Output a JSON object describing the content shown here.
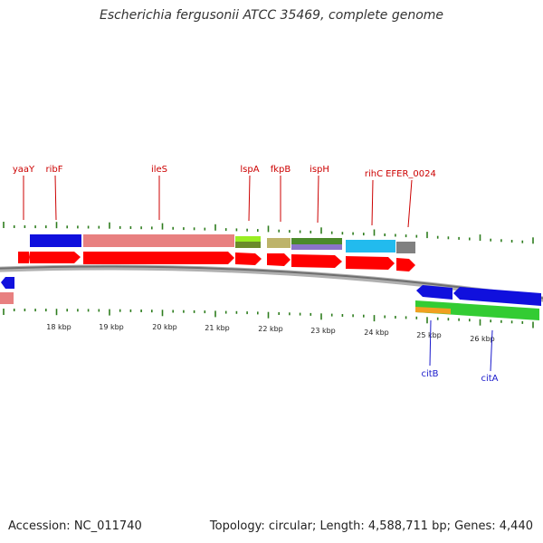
{
  "title": "Escherichia fergusonii ATCC 35469, complete genome",
  "footer": {
    "accession": "Accession: NC_011740",
    "summary": "Topology: circular; Length: 4,588,711 bp; Genes: 4,440"
  },
  "colors": {
    "forward_label": "#cc0000",
    "reverse_label": "#1a1acc",
    "cds_red": "#ff0000",
    "tick": "#2e7d1e",
    "backbone": "#7a7a7a"
  },
  "scale": {
    "unit": "kbp",
    "ticks": [
      {
        "label": "18 kbp"
      },
      {
        "label": "19 kbp"
      },
      {
        "label": "20 kbp"
      },
      {
        "label": "21 kbp"
      },
      {
        "label": "22 kbp"
      },
      {
        "label": "23 kbp"
      },
      {
        "label": "24 kbp"
      },
      {
        "label": "25 kbp"
      },
      {
        "label": "26 kbp"
      }
    ]
  },
  "forward_genes": [
    {
      "name": "yaaY"
    },
    {
      "name": "ribF"
    },
    {
      "name": "ileS"
    },
    {
      "name": "lspA"
    },
    {
      "name": "fkpB"
    },
    {
      "name": "ispH"
    },
    {
      "name": "rihC"
    },
    {
      "name": "EFER_0024"
    }
  ],
  "reverse_genes": [
    {
      "name": "citB"
    },
    {
      "name": "citA"
    }
  ]
}
